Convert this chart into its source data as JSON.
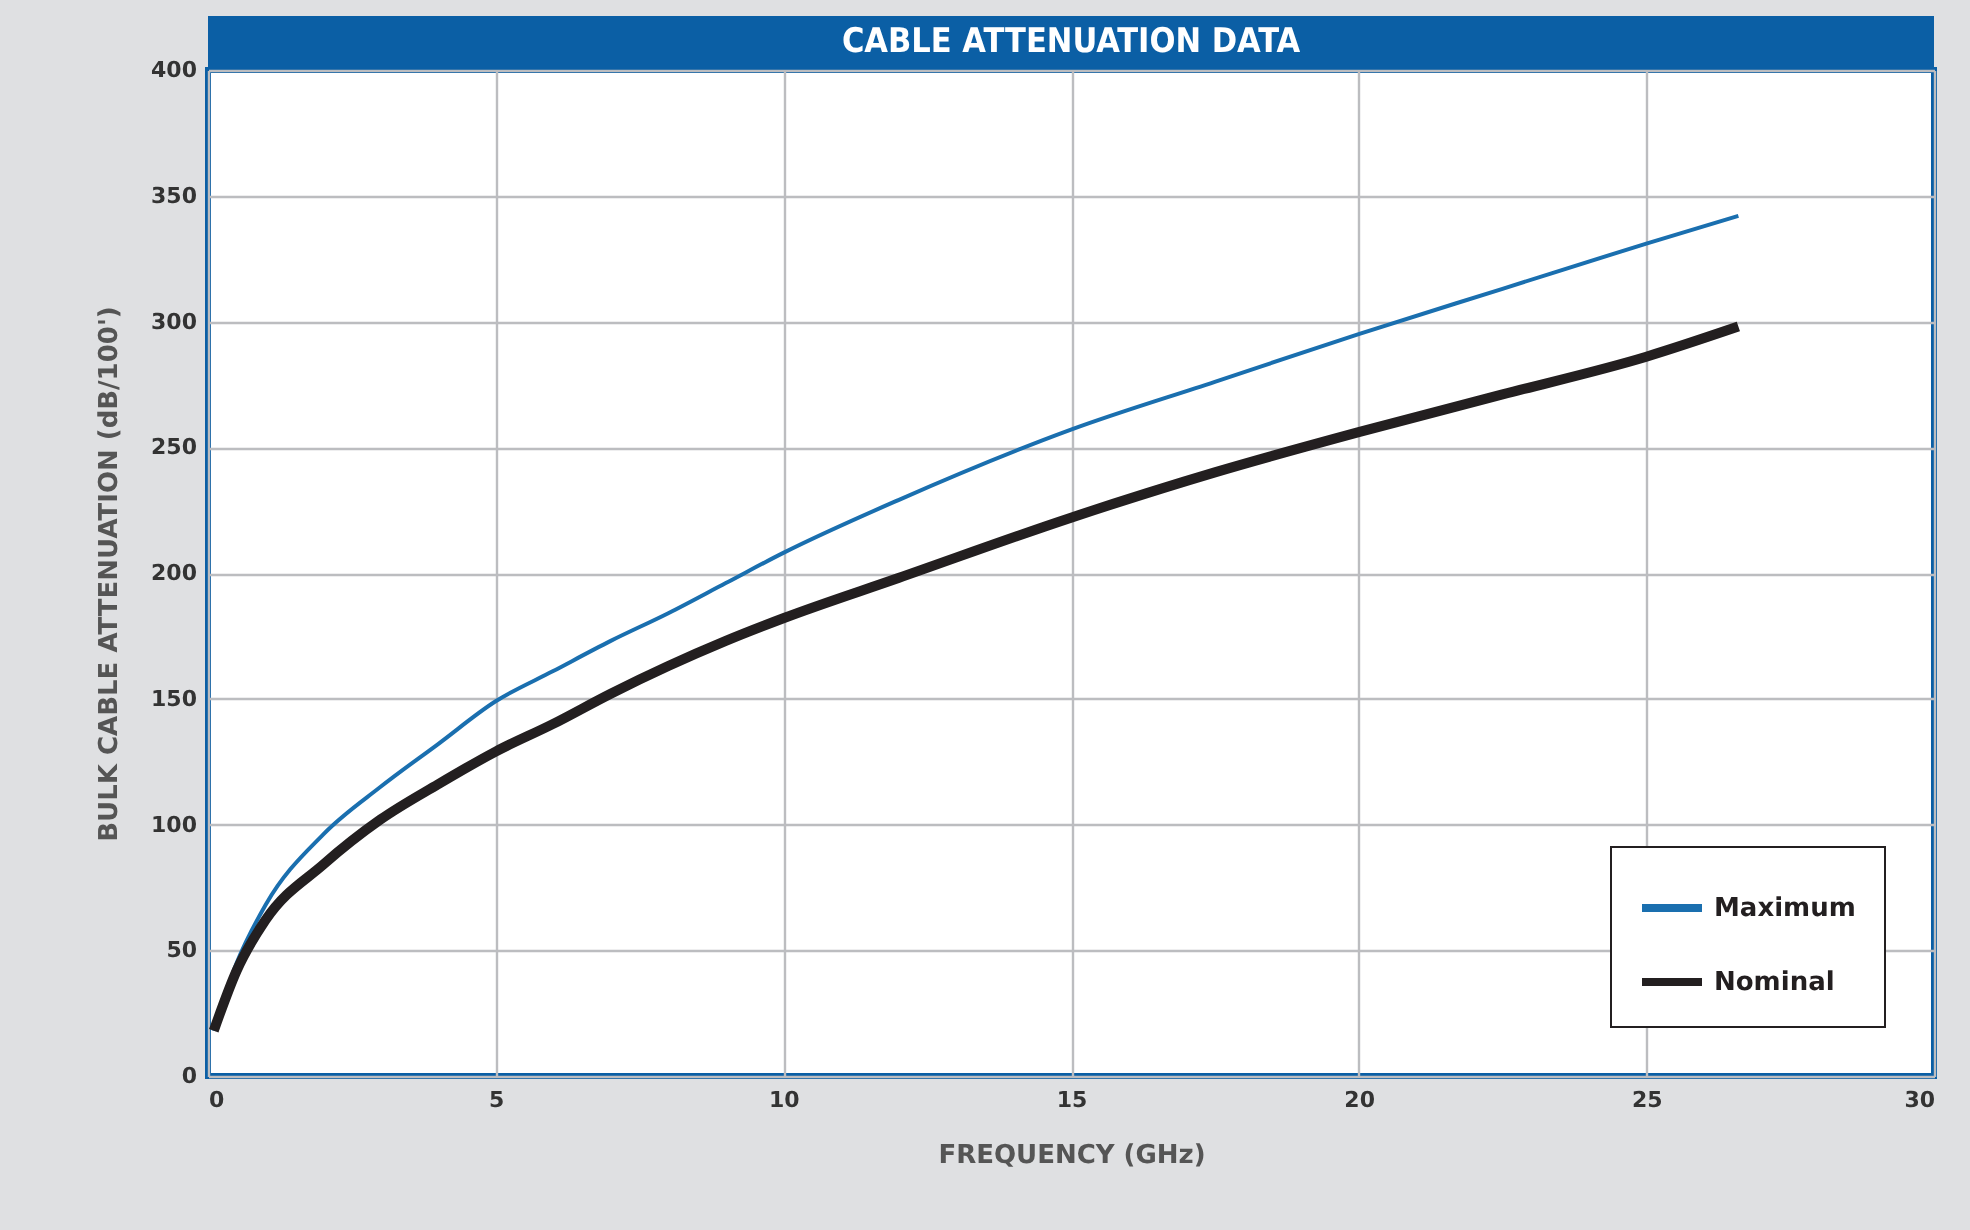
{
  "chart_data": {
    "type": "line",
    "title": "CABLE ATTENUATION DATA",
    "xlabel": "FREQUENCY (GHz)",
    "ylabel": "BULK CABLE ATTENUATION (dB/100')",
    "xlim": [
      0,
      30
    ],
    "xticks": [
      0,
      5,
      10,
      15,
      20,
      25,
      30
    ],
    "ylim": [
      0,
      400
    ],
    "yticks": [
      0,
      50,
      100,
      150,
      200,
      250,
      300,
      350,
      400
    ],
    "grid": true,
    "legend": "bottom right",
    "marker": "none",
    "line_style": "solid",
    "series": [
      {
        "name": "Maximum",
        "color": "#1a6faf",
        "x": [
          0.1,
          0.5,
          1,
          2,
          3,
          4,
          5,
          6,
          7,
          8,
          9,
          10,
          12,
          15,
          17.5,
          20,
          22.5,
          25,
          26.6
        ],
        "values": [
          18,
          45,
          68,
          96,
          115,
          132,
          149,
          161,
          173,
          184,
          196,
          208,
          229,
          257,
          276,
          295,
          313,
          331,
          342
        ]
      },
      {
        "name": "Nominal",
        "color": "#231f20",
        "x": [
          0.1,
          0.5,
          1,
          2,
          3,
          4,
          5,
          6,
          7,
          8,
          9,
          10,
          12,
          15,
          17.5,
          20,
          22.5,
          25,
          26.6
        ],
        "values": [
          18,
          42,
          62,
          84,
          102,
          116,
          129,
          140,
          152,
          163,
          173,
          182,
          198,
          222,
          240,
          256,
          271,
          286,
          298
        ]
      }
    ]
  }
}
